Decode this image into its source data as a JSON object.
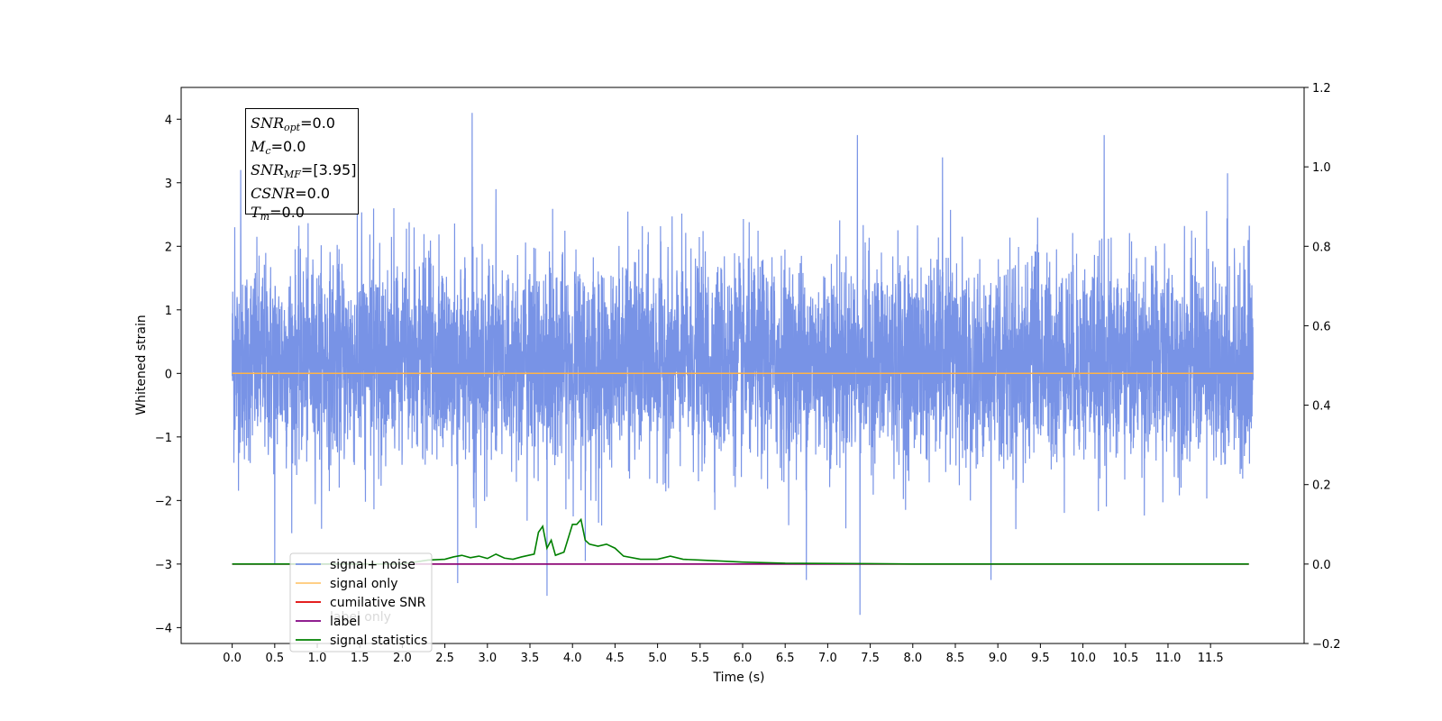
{
  "chart_data": {
    "type": "line",
    "xlabel": "Time (s)",
    "ylabel": "Whitened strain",
    "xlim": [
      -0.6,
      12.6
    ],
    "ylim": [
      -4.25,
      4.5
    ],
    "y2lim": [
      -0.2,
      1.2
    ],
    "xticks": [
      "0.0",
      "0.5",
      "1.0",
      "1.5",
      "2.0",
      "2.5",
      "3.0",
      "3.5",
      "4.0",
      "4.5",
      "5.0",
      "5.5",
      "6.0",
      "6.5",
      "7.0",
      "7.5",
      "8.0",
      "8.5",
      "9.0",
      "9.5",
      "10.0",
      "10.5",
      "11.0",
      "11.5"
    ],
    "yticks": [
      "4",
      "3",
      "2",
      "1",
      "0",
      "−1",
      "−2",
      "−3",
      "−4"
    ],
    "y2ticks": [
      "1.2",
      "1.0",
      "0.8",
      "0.6",
      "0.4",
      "0.2",
      "0.0",
      "−0.2"
    ],
    "grid": false,
    "legend_position": "lower-left",
    "series": [
      {
        "name": "signal+ noise",
        "color": "#7893e6",
        "axis": "left",
        "note_values": "noise envelope: mean 0, typical range -1.8 to 2.2",
        "peaks": [
          {
            "x": 0.03,
            "y": 2.3
          },
          {
            "x": 0.1,
            "y": 3.2
          },
          {
            "x": 0.5,
            "y": -3.0
          },
          {
            "x": 1.9,
            "y": 2.6
          },
          {
            "x": 2.65,
            "y": -3.3
          },
          {
            "x": 2.82,
            "y": 4.1
          },
          {
            "x": 3.1,
            "y": 2.9
          },
          {
            "x": 3.7,
            "y": -3.5
          },
          {
            "x": 4.15,
            "y": -2.95
          },
          {
            "x": 6.75,
            "y": -3.25
          },
          {
            "x": 7.35,
            "y": 3.75
          },
          {
            "x": 7.38,
            "y": -3.8
          },
          {
            "x": 8.35,
            "y": 3.4
          },
          {
            "x": 8.92,
            "y": -3.25
          },
          {
            "x": 10.25,
            "y": 3.75
          },
          {
            "x": 11.7,
            "y": 3.15
          }
        ]
      },
      {
        "name": "signal only",
        "color": "#ffb347",
        "axis": "left",
        "x": [
          0.0,
          12.0
        ],
        "y": [
          0.0,
          0.0
        ]
      },
      {
        "name": "cumilative SNR",
        "color": "#e00000",
        "axis": "right",
        "x": [
          0.0,
          11.95
        ],
        "y": [
          0.0,
          0.0
        ]
      },
      {
        "name": "label",
        "color": "#800080",
        "axis": "right",
        "x": [
          0.0,
          11.95
        ],
        "y": [
          0.0,
          0.0
        ]
      },
      {
        "name": "signal statistics",
        "color": "#008000",
        "axis": "right",
        "x": [
          0.0,
          2.0,
          2.3,
          2.5,
          2.6,
          2.7,
          2.8,
          2.9,
          3.0,
          3.1,
          3.2,
          3.3,
          3.4,
          3.55,
          3.6,
          3.65,
          3.7,
          3.75,
          3.8,
          3.9,
          4.0,
          4.05,
          4.1,
          4.15,
          4.2,
          4.3,
          4.4,
          4.5,
          4.6,
          4.8,
          5.0,
          5.15,
          5.3,
          5.5,
          5.7,
          6.0,
          6.5,
          7.5,
          8.0,
          11.95
        ],
        "y": [
          0.0,
          0.0,
          0.01,
          0.012,
          0.018,
          0.022,
          0.016,
          0.02,
          0.014,
          0.025,
          0.015,
          0.012,
          0.018,
          0.025,
          0.08,
          0.095,
          0.04,
          0.06,
          0.022,
          0.03,
          0.1,
          0.1,
          0.112,
          0.06,
          0.05,
          0.045,
          0.05,
          0.04,
          0.02,
          0.012,
          0.012,
          0.02,
          0.012,
          0.01,
          0.008,
          0.005,
          0.002,
          0.001,
          0.0,
          0.0
        ]
      }
    ],
    "legend": [
      {
        "label": "signal+ noise",
        "color": "#7893e6"
      },
      {
        "label": "signal only",
        "color": "#ffc875"
      },
      {
        "label": "cumilative SNR",
        "color": "#e00000"
      },
      {
        "label": "label",
        "color": "#800080"
      },
      {
        "label": "signal statistics",
        "color": "#008000"
      }
    ],
    "hidden_legend_text": "label only",
    "annotations": {
      "snr_opt": {
        "sym": "SNR",
        "sub": "opt",
        "value": "=0.0"
      },
      "mc": {
        "sym": "M",
        "sub": "c",
        "value": "=0.0"
      },
      "snr_mf": {
        "sym": "SNR",
        "sub": "MF",
        "value": "=[3.95]"
      },
      "csnr": {
        "sym": "CSNR",
        "value": "=0.0"
      },
      "tm": {
        "sym": "T",
        "sub": "m",
        "value": "=0.0"
      }
    }
  }
}
